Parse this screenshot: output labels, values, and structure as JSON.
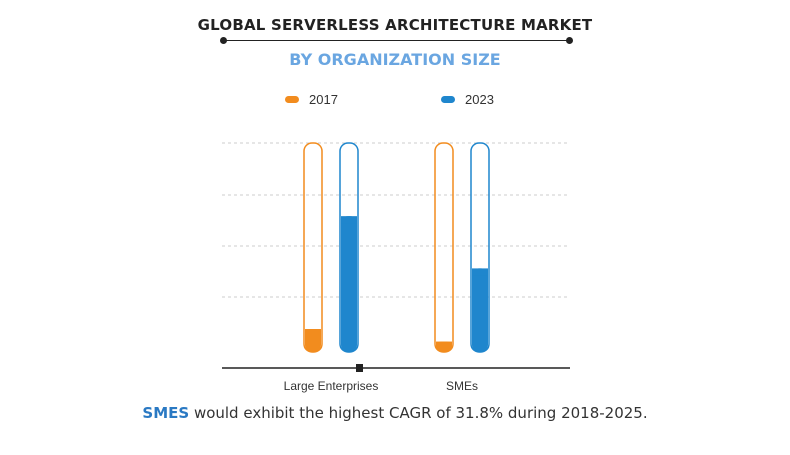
{
  "title": "GLOBAL SERVERLESS ARCHITECTURE MARKET",
  "subtitle": "BY ORGANIZATION SIZE",
  "footer": {
    "highlight": "SMES",
    "text": " would exhibit the highest CAGR of 31.8% during 2018-2025."
  },
  "colors": {
    "2017": "#f28c1e",
    "2023": "#1f86cd",
    "subtitle": "#6aa6e1",
    "highlight": "#2a79c3"
  },
  "chart_data": {
    "type": "bar",
    "categories": [
      "Large Enterprises",
      "SMEs"
    ],
    "series": [
      {
        "name": "2017",
        "values": [
          0.11,
          0.05
        ]
      },
      {
        "name": "2023",
        "values": [
          0.65,
          0.4
        ]
      }
    ],
    "ylim": [
      0,
      1
    ],
    "grid": true,
    "legend_position": "top",
    "y_axis_labels": false
  }
}
